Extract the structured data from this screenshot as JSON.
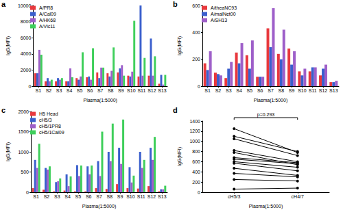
{
  "chart_data": [
    {
      "type": "bar",
      "title": "a",
      "xlabel": "Plasma(1:5000)",
      "ylabel": "IgG(MFI)",
      "categories": [
        "S1",
        "S2",
        "S3",
        "S4",
        "S5",
        "S6",
        "S7",
        "S8",
        "S9",
        "S10",
        "S11",
        "S12",
        "S13"
      ],
      "series": [
        {
          "name": "A/PR8",
          "color": "#e8383d",
          "values": [
            1600,
            600,
            600,
            600,
            1000,
            1100,
            1700,
            1600,
            1700,
            1300,
            1200,
            1300,
            300
          ]
        },
        {
          "name": "A/Cal09",
          "color": "#3a5fcd",
          "values": [
            1600,
            1000,
            1000,
            600,
            800,
            1200,
            1000,
            1200,
            2200,
            1200,
            10000,
            5900,
            1400
          ]
        },
        {
          "name": "A/HK68",
          "color": "#9e5fc9",
          "values": [
            4500,
            600,
            800,
            2200,
            1200,
            800,
            2300,
            1900,
            2600,
            1800,
            1300,
            1300,
            200
          ]
        },
        {
          "name": "A/Vic11",
          "color": "#3fcf5b",
          "values": [
            3900,
            800,
            1000,
            1100,
            4200,
            4700,
            2300,
            4800,
            1300,
            8100,
            3500,
            3700,
            1400
          ]
        }
      ],
      "ylim": [
        0,
        10000
      ],
      "yticks": [
        0,
        2000,
        4000,
        6000,
        8000,
        10000
      ],
      "grid": false,
      "legend": "upper left"
    },
    {
      "type": "bar",
      "title": "b",
      "xlabel": "Plasma(1:5000)",
      "ylabel": "IgG(MFI)",
      "categories": [
        "S1",
        "S2",
        "S3",
        "S4",
        "S5",
        "S6",
        "S7",
        "S8",
        "S9",
        "S10",
        "S11",
        "S12",
        "S13"
      ],
      "series": [
        {
          "name": "A/theaNC93",
          "color": "#e8383d",
          "values": [
            170,
            100,
            60,
            250,
            230,
            70,
            430,
            240,
            280,
            110,
            110,
            80,
            30
          ]
        },
        {
          "name": "A/malNet00",
          "color": "#3a5fcd",
          "values": [
            120,
            90,
            130,
            170,
            130,
            70,
            290,
            200,
            160,
            80,
            140,
            130,
            30
          ]
        },
        {
          "name": "A/SH13",
          "color": "#9e5fc9",
          "values": [
            260,
            80,
            180,
            320,
            340,
            70,
            580,
            420,
            260,
            130,
            140,
            160,
            40
          ]
        }
      ],
      "ylim": [
        0,
        600
      ],
      "yticks": [
        0,
        200,
        400,
        600
      ],
      "grid": false,
      "legend": "upper left"
    },
    {
      "type": "bar",
      "title": "c",
      "xlabel": "Plasma(1:5000)",
      "ylabel": "IgG(MFI)",
      "categories": [
        "S1",
        "S2",
        "S3",
        "S4",
        "S5",
        "S6",
        "S7",
        "S8",
        "S9",
        "S10",
        "S11",
        "S12",
        "S13"
      ],
      "series": [
        {
          "name": "H5 Head",
          "color": "#e8383d",
          "values": [
            100,
            60,
            20,
            40,
            20,
            20,
            100,
            80,
            200,
            100,
            90,
            150,
            20
          ]
        },
        {
          "name": "cH5/3",
          "color": "#3a5fcd",
          "values": [
            800,
            600,
            250,
            440,
            670,
            640,
            770,
            1000,
            1100,
            620,
            1000,
            1100,
            70
          ]
        },
        {
          "name": "cH5/1PR8",
          "color": "#9e5fc9",
          "values": [
            600,
            560,
            270,
            150,
            400,
            440,
            400,
            770,
            700,
            240,
            600,
            800,
            70
          ]
        },
        {
          "name": "cH5/1Cal09",
          "color": "#3fcf5b",
          "values": [
            1200,
            640,
            340,
            390,
            660,
            660,
            1500,
            1700,
            1800,
            410,
            800,
            1370,
            160
          ]
        }
      ],
      "ylim": [
        0,
        2000
      ],
      "yticks": [
        0,
        500,
        1000,
        1500,
        2000
      ],
      "grid": false,
      "legend": "upper left"
    },
    {
      "type": "line",
      "title": "d",
      "xlabel": "Plasma(1:5000)",
      "ylabel": "IgG(MFI)",
      "categories": [
        "cH5/3",
        "cH4/7"
      ],
      "color": "#000000",
      "marker": "circle",
      "line_style": "solid",
      "annotation": "p=0.293",
      "series": [
        {
          "values": [
            1250,
            780
          ]
        },
        {
          "values": [
            1100,
            800
          ]
        },
        {
          "values": [
            1050,
            720
          ]
        },
        {
          "values": [
            820,
            600
          ]
        },
        {
          "values": [
            780,
            540
          ]
        },
        {
          "values": [
            680,
            580
          ]
        },
        {
          "values": [
            650,
            560
          ]
        },
        {
          "values": [
            600,
            490
          ]
        },
        {
          "values": [
            570,
            420
          ]
        },
        {
          "values": [
            470,
            330
          ]
        },
        {
          "values": [
            370,
            300
          ]
        },
        {
          "values": [
            250,
            220
          ]
        },
        {
          "values": [
            60,
            80
          ]
        }
      ],
      "ylim": [
        0,
        1400
      ],
      "yticks": [
        0,
        200,
        400,
        600,
        800,
        1000,
        1200,
        1400
      ],
      "grid": false
    }
  ]
}
